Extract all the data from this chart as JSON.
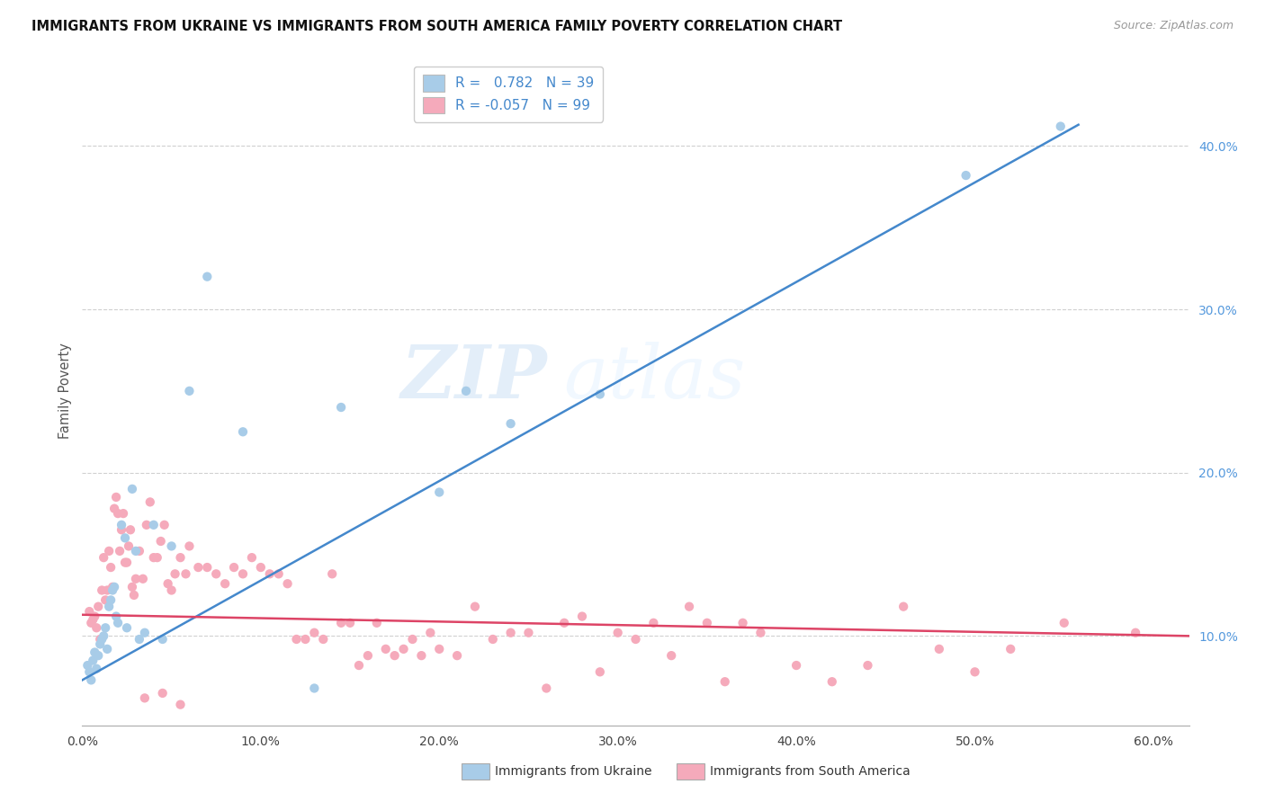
{
  "title": "IMMIGRANTS FROM UKRAINE VS IMMIGRANTS FROM SOUTH AMERICA FAMILY POVERTY CORRELATION CHART",
  "source": "Source: ZipAtlas.com",
  "ylabel": "Family Poverty",
  "legend_ukraine": "Immigrants from Ukraine",
  "legend_south_america": "Immigrants from South America",
  "ukraine_R": 0.782,
  "ukraine_N": 39,
  "south_america_R": -0.057,
  "south_america_N": 99,
  "ukraine_color": "#a8cce8",
  "south_america_color": "#f5aabb",
  "ukraine_line_color": "#4488cc",
  "south_america_line_color": "#dd4466",
  "xlim": [
    0.0,
    0.62
  ],
  "ylim": [
    0.045,
    0.455
  ],
  "yticks_right": [
    0.1,
    0.2,
    0.3,
    0.4
  ],
  "ytick_labels_right": [
    "10.0%",
    "20.0%",
    "30.0%",
    "40.0%"
  ],
  "xtick_vals": [
    0.0,
    0.1,
    0.2,
    0.3,
    0.4,
    0.5,
    0.6
  ],
  "ukraine_line_x0": 0.0,
  "ukraine_line_y0": 0.073,
  "ukraine_line_x1": 0.558,
  "ukraine_line_y1": 0.413,
  "sa_line_x0": 0.0,
  "sa_line_y0": 0.113,
  "sa_line_x1": 0.62,
  "sa_line_y1": 0.1,
  "ukraine_x": [
    0.003,
    0.004,
    0.005,
    0.006,
    0.007,
    0.008,
    0.009,
    0.01,
    0.011,
    0.012,
    0.013,
    0.014,
    0.015,
    0.016,
    0.017,
    0.018,
    0.019,
    0.02,
    0.022,
    0.024,
    0.025,
    0.028,
    0.03,
    0.032,
    0.035,
    0.04,
    0.045,
    0.05,
    0.06,
    0.07,
    0.09,
    0.13,
    0.145,
    0.2,
    0.215,
    0.24,
    0.29,
    0.495,
    0.548
  ],
  "ukraine_y": [
    0.082,
    0.078,
    0.073,
    0.085,
    0.09,
    0.08,
    0.088,
    0.095,
    0.098,
    0.1,
    0.105,
    0.092,
    0.118,
    0.122,
    0.128,
    0.13,
    0.112,
    0.108,
    0.168,
    0.16,
    0.105,
    0.19,
    0.152,
    0.098,
    0.102,
    0.168,
    0.098,
    0.155,
    0.25,
    0.32,
    0.225,
    0.068,
    0.24,
    0.188,
    0.25,
    0.23,
    0.248,
    0.382,
    0.412
  ],
  "south_america_x": [
    0.004,
    0.005,
    0.006,
    0.007,
    0.008,
    0.009,
    0.01,
    0.011,
    0.012,
    0.013,
    0.014,
    0.015,
    0.016,
    0.017,
    0.018,
    0.019,
    0.02,
    0.021,
    0.022,
    0.023,
    0.024,
    0.025,
    0.026,
    0.027,
    0.028,
    0.029,
    0.03,
    0.032,
    0.034,
    0.036,
    0.038,
    0.04,
    0.042,
    0.044,
    0.046,
    0.048,
    0.05,
    0.052,
    0.055,
    0.058,
    0.06,
    0.065,
    0.07,
    0.075,
    0.08,
    0.085,
    0.09,
    0.095,
    0.1,
    0.105,
    0.11,
    0.115,
    0.12,
    0.125,
    0.13,
    0.135,
    0.14,
    0.145,
    0.15,
    0.155,
    0.16,
    0.165,
    0.17,
    0.175,
    0.18,
    0.185,
    0.19,
    0.195,
    0.2,
    0.21,
    0.22,
    0.23,
    0.24,
    0.25,
    0.26,
    0.27,
    0.28,
    0.29,
    0.3,
    0.31,
    0.32,
    0.33,
    0.34,
    0.35,
    0.36,
    0.37,
    0.38,
    0.4,
    0.42,
    0.44,
    0.46,
    0.48,
    0.5,
    0.52,
    0.035,
    0.045,
    0.055,
    0.55,
    0.59
  ],
  "south_america_y": [
    0.115,
    0.108,
    0.11,
    0.112,
    0.105,
    0.118,
    0.098,
    0.128,
    0.148,
    0.122,
    0.128,
    0.152,
    0.142,
    0.13,
    0.178,
    0.185,
    0.175,
    0.152,
    0.165,
    0.175,
    0.145,
    0.145,
    0.155,
    0.165,
    0.13,
    0.125,
    0.135,
    0.152,
    0.135,
    0.168,
    0.182,
    0.148,
    0.148,
    0.158,
    0.168,
    0.132,
    0.128,
    0.138,
    0.148,
    0.138,
    0.155,
    0.142,
    0.142,
    0.138,
    0.132,
    0.142,
    0.138,
    0.148,
    0.142,
    0.138,
    0.138,
    0.132,
    0.098,
    0.098,
    0.102,
    0.098,
    0.138,
    0.108,
    0.108,
    0.082,
    0.088,
    0.108,
    0.092,
    0.088,
    0.092,
    0.098,
    0.088,
    0.102,
    0.092,
    0.088,
    0.118,
    0.098,
    0.102,
    0.102,
    0.068,
    0.108,
    0.112,
    0.078,
    0.102,
    0.098,
    0.108,
    0.088,
    0.118,
    0.108,
    0.072,
    0.108,
    0.102,
    0.082,
    0.072,
    0.082,
    0.118,
    0.092,
    0.078,
    0.092,
    0.062,
    0.065,
    0.058,
    0.108,
    0.102
  ]
}
